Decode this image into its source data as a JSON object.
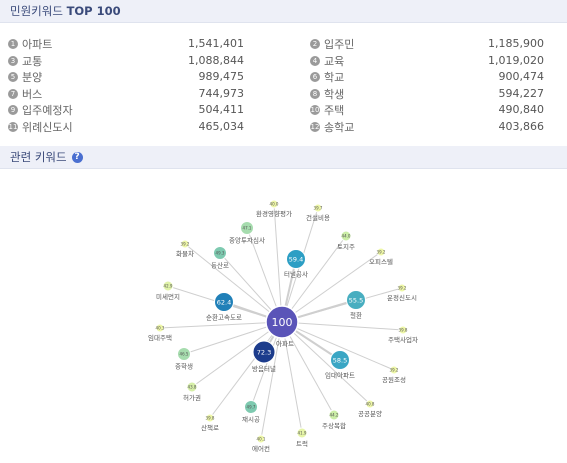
{
  "top_section": {
    "title_prefix": "민원키워드",
    "title_suffix": "TOP 100"
  },
  "top_keywords": [
    {
      "rank": "1",
      "name": "아파트",
      "count": "1,541,401"
    },
    {
      "rank": "2",
      "name": "입주민",
      "count": "1,185,900"
    },
    {
      "rank": "3",
      "name": "교통",
      "count": "1,088,844"
    },
    {
      "rank": "4",
      "name": "교육",
      "count": "1,019,020"
    },
    {
      "rank": "5",
      "name": "분양",
      "count": "989,475"
    },
    {
      "rank": "6",
      "name": "학교",
      "count": "900,474"
    },
    {
      "rank": "7",
      "name": "버스",
      "count": "744,973"
    },
    {
      "rank": "8",
      "name": "학생",
      "count": "594,227"
    },
    {
      "rank": "9",
      "name": "입주예정자",
      "count": "504,411"
    },
    {
      "rank": "10",
      "name": "주택",
      "count": "490,840"
    },
    {
      "rank": "11",
      "name": "위례신도시",
      "count": "465,034"
    },
    {
      "rank": "12",
      "name": "송학교",
      "count": "403,866"
    }
  ],
  "related_section": {
    "title": "관련 키워드",
    "help_icon": "question-circle-icon"
  },
  "network": {
    "center": {
      "score": "100",
      "label": "아파트"
    },
    "nodes": [
      {
        "score": "40.0",
        "label": "환경영향평가",
        "color": "#eef7a8"
      },
      {
        "score": "39.7",
        "label": "건설비용",
        "color": "#eef7a8"
      },
      {
        "score": "47.1",
        "label": "중앙투자심사",
        "color": "#a6dcae"
      },
      {
        "score": "44.0",
        "label": "토지주",
        "color": "#cbeea6"
      },
      {
        "score": "39.2",
        "label": "화물차",
        "color": "#eef7a8"
      },
      {
        "score": "49.3",
        "label": "동산로",
        "color": "#7ecab0"
      },
      {
        "score": "59.4",
        "label": "터널공사",
        "color": "#2c9ec4"
      },
      {
        "score": "39.2",
        "label": "오피스텔",
        "color": "#eef7a8"
      },
      {
        "score": "42.9",
        "label": "미세먼지",
        "color": "#e0f3a8"
      },
      {
        "score": "62.4",
        "label": "순환고속도로",
        "color": "#2080b8"
      },
      {
        "score": "55.5",
        "label": "철환",
        "color": "#48aec0"
      },
      {
        "score": "39.2",
        "label": "운정신도시",
        "color": "#eef7a8"
      },
      {
        "score": "40.3",
        "label": "임대주택",
        "color": "#eef7a8"
      },
      {
        "score": "39.8",
        "label": "주택사업자",
        "color": "#eef7a8"
      },
      {
        "score": "72.3",
        "label": "방음터널",
        "color": "#1c3c8c"
      },
      {
        "score": "46.5",
        "label": "중학생",
        "color": "#a6dcae"
      },
      {
        "score": "58.5",
        "label": "임대아파트",
        "color": "#3aa6c4"
      },
      {
        "score": "39.2",
        "label": "공원조성",
        "color": "#eef7a8"
      },
      {
        "score": "43.8",
        "label": "허가권",
        "color": "#d6efa8"
      },
      {
        "score": "40.8",
        "label": "공공분양",
        "color": "#eef7a8"
      },
      {
        "score": "39.8",
        "label": "산책로",
        "color": "#eef7a8"
      },
      {
        "score": "49.7",
        "label": "재시공",
        "color": "#7ecab0"
      },
      {
        "score": "44.2",
        "label": "주상복합",
        "color": "#cbeea6"
      },
      {
        "score": "40.1",
        "label": "에어컨",
        "color": "#eef7a8"
      },
      {
        "score": "41.9",
        "label": "트럭",
        "color": "#e6f5a8"
      }
    ]
  }
}
